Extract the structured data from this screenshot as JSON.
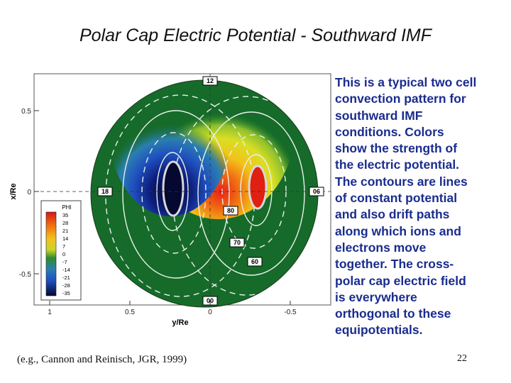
{
  "slide": {
    "title": "Polar Cap Electric Potential - Southward IMF",
    "description_lines": [
      "This is a typical two cell",
      "convection pattern for",
      "southward IMF",
      "conditions.  Colors",
      "show the strength of",
      "the electric potential.",
      "The contours are lines",
      "of constant potential",
      "and also drift paths",
      "along which ions and",
      "electrons move",
      "together.  The cross-",
      "polar cap electric field",
      "is everywhere",
      "orthogonal to these",
      "equipotentials."
    ],
    "citation": "(e.g., Cannon and Reinisch, JGR, 1999)",
    "page_number": "22"
  },
  "figure": {
    "ylabel": "x/Re",
    "xlabel": "y/Re",
    "yticks": [
      "0.5",
      "0",
      "-0.5"
    ],
    "xticks": [
      "1",
      "0.5",
      "0",
      "-0.5"
    ],
    "mlt_labels": {
      "top": "12",
      "left": "18",
      "right": "06",
      "bottom": "00"
    },
    "contour_labels": [
      "80",
      "70",
      "60"
    ],
    "colorbar": {
      "title": "PHI",
      "ticks": [
        "35",
        "28",
        "21",
        "14",
        "7",
        "0",
        "-7",
        "-14",
        "-21",
        "-28",
        "-35"
      ]
    },
    "colors": {
      "background": "#166b2a",
      "positive_core": "#e02010",
      "negative_core": "#050830"
    }
  }
}
